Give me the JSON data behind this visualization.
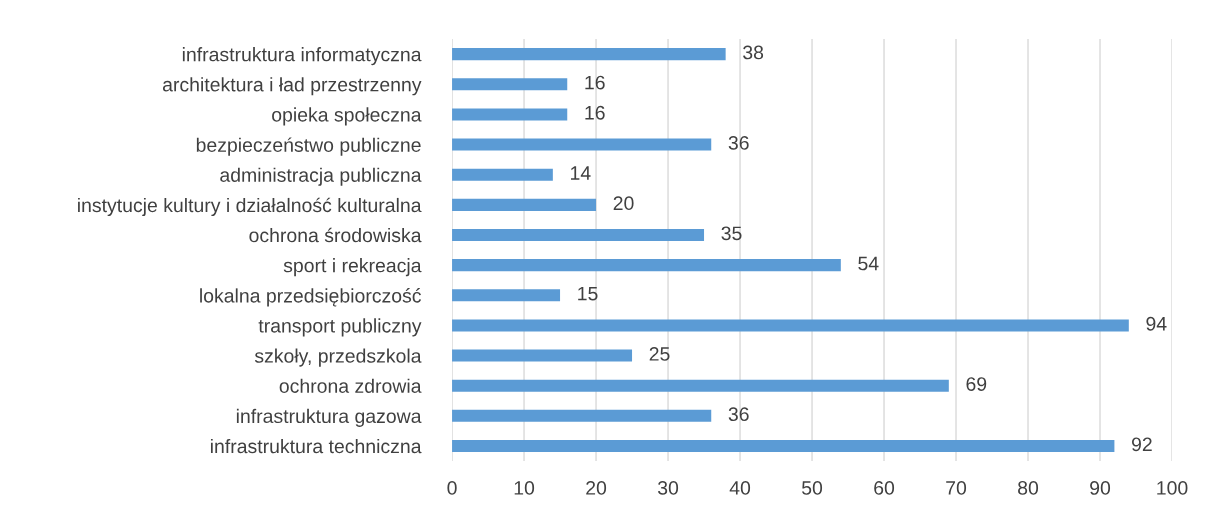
{
  "chart_data": {
    "type": "bar",
    "orientation": "horizontal",
    "categories": [
      "infrastruktura informatyczna",
      "architektura i ład przestrzenny",
      "opieka społeczna",
      "bezpieczeństwo publiczne",
      "administracja publiczna",
      "instytucje kultury i działalność kulturalna",
      "ochrona środowiska",
      "sport i rekreacja",
      "lokalna przedsiębiorczość",
      "transport publiczny",
      "szkoły, przedszkola",
      "ochrona zdrowia",
      "infrastruktura gazowa",
      "infrastruktura techniczna"
    ],
    "values": [
      38,
      16,
      16,
      36,
      14,
      20,
      35,
      54,
      15,
      94,
      25,
      69,
      36,
      92
    ],
    "color": "#5b9bd5",
    "xlim": [
      0,
      100
    ],
    "xticks": [
      0,
      10,
      20,
      30,
      40,
      50,
      60,
      70,
      80,
      90,
      100
    ],
    "grid": "x",
    "data_labels": true
  }
}
